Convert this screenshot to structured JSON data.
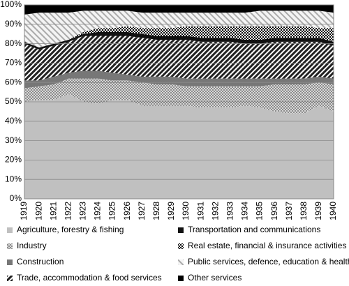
{
  "chart_data": {
    "type": "stacked-area",
    "categories": [
      "1919",
      "1920",
      "1921",
      "1922",
      "1923",
      "1924",
      "1925",
      "1926",
      "1927",
      "1928",
      "1929",
      "1930",
      "1931",
      "1932",
      "1933",
      "1934",
      "1935",
      "1936",
      "1937",
      "1938",
      "1939",
      "1940"
    ],
    "ylim": [
      0,
      100
    ],
    "yticks": [
      {
        "value": 0,
        "label": "0%"
      },
      {
        "value": 10,
        "label": "10%"
      },
      {
        "value": 20,
        "label": "20%"
      },
      {
        "value": 30,
        "label": "30%"
      },
      {
        "value": 40,
        "label": "40%"
      },
      {
        "value": 50,
        "label": "50%"
      },
      {
        "value": 60,
        "label": "60%"
      },
      {
        "value": 70,
        "label": "70%"
      },
      {
        "value": 80,
        "label": "80%"
      },
      {
        "value": 90,
        "label": "90%"
      },
      {
        "value": 100,
        "label": "100%"
      }
    ],
    "grid": true,
    "series": [
      {
        "name": "Agriculture, forestry & fishing",
        "color": "#c0c0c0",
        "values": [
          50,
          51,
          51,
          54,
          50,
          49,
          51,
          51,
          48,
          48,
          48,
          48,
          47,
          47,
          47,
          48,
          47,
          45,
          44,
          44,
          48,
          45
        ]
      },
      {
        "name": "Industry",
        "color": "#555555",
        "values": [
          7,
          7,
          8,
          8,
          12,
          13,
          10,
          10,
          12,
          11,
          11,
          10,
          11,
          11,
          11,
          10,
          11,
          14,
          15,
          15,
          12,
          14
        ]
      },
      {
        "name": "Construction",
        "color": "#777777",
        "values": [
          4,
          3,
          4,
          3,
          4,
          4,
          4,
          3,
          3,
          4,
          4,
          4,
          4,
          4,
          4,
          4,
          4,
          3,
          3,
          3,
          3,
          3
        ]
      },
      {
        "name": "Trade, accommodation & food services",
        "color": "#222222",
        "values": [
          19,
          16,
          16,
          16,
          18,
          18,
          19,
          20,
          20,
          19,
          19,
          20,
          19,
          19,
          19,
          18,
          18,
          19,
          19,
          19,
          18,
          17
        ]
      },
      {
        "name": "Transportation and communications",
        "color": "#111111",
        "values": [
          1,
          1,
          1,
          1,
          1,
          2,
          2,
          2,
          2,
          2,
          2,
          2,
          2,
          2,
          2,
          2,
          2,
          2,
          2,
          2,
          2,
          2
        ]
      },
      {
        "name": "Real estate, financial & insurance activities",
        "color": "#000000",
        "values": [
          0,
          0,
          0,
          0,
          1,
          2,
          2,
          3,
          3,
          4,
          4,
          5,
          6,
          6,
          6,
          7,
          7,
          6,
          6,
          6,
          5,
          7
        ]
      },
      {
        "name": "Public services, defence, education & health",
        "color": "#aaaaaa",
        "values": [
          14,
          18,
          16,
          14,
          11,
          9,
          9,
          8,
          8,
          8,
          8,
          7,
          7,
          7,
          7,
          7,
          8,
          8,
          8,
          8,
          9,
          8
        ]
      },
      {
        "name": "Other services",
        "color": "#000000",
        "values": [
          5,
          4,
          4,
          4,
          3,
          3,
          3,
          3,
          4,
          4,
          4,
          4,
          4,
          4,
          4,
          4,
          3,
          3,
          3,
          3,
          3,
          4
        ]
      }
    ]
  }
}
